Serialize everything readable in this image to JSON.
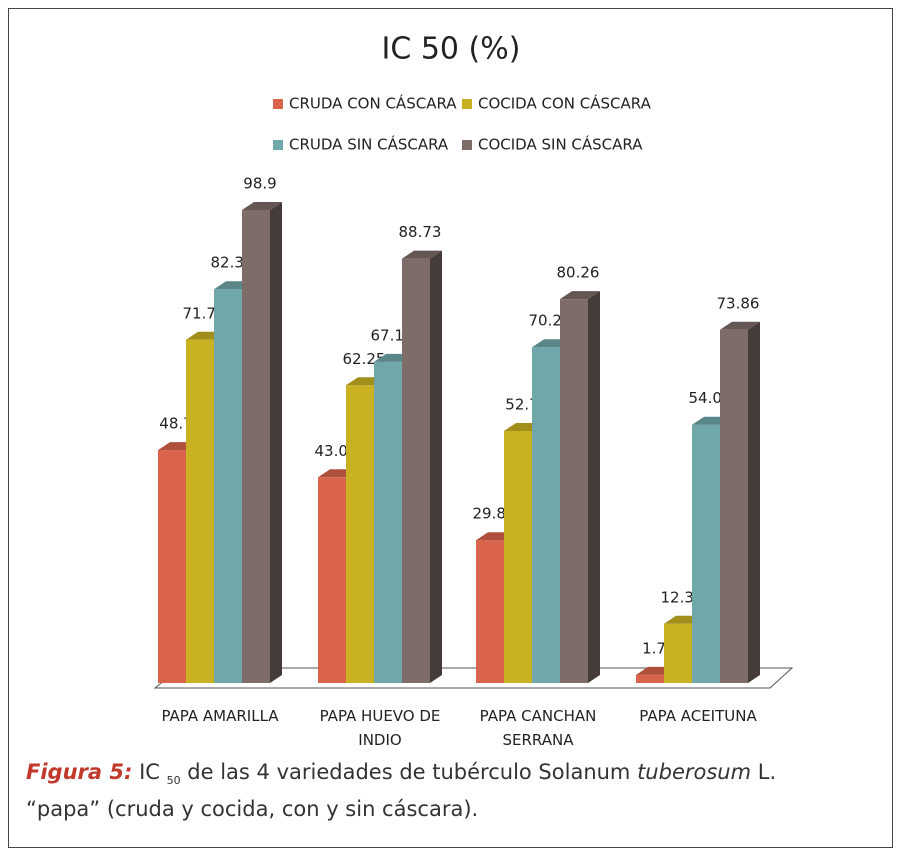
{
  "chart_data": {
    "type": "bar3d",
    "title": "IC 50 (%)",
    "categories": [
      "PAPA AMARILLA",
      "PAPA HUEVO DE INDIO",
      "PAPA CANCHAN SERRANA",
      "PAPA ACEITUNA"
    ],
    "series": [
      {
        "name": "CRUDA CON CÁSCARA",
        "color": "#d9644b",
        "values": [
          48.7,
          43.01,
          29.86,
          1.7
        ]
      },
      {
        "name": "COCIDA CON CÁSCARA",
        "color": "#c9b122",
        "values": [
          71.77,
          62.25,
          52.7,
          12.38
        ]
      },
      {
        "name": "CRUDA SIN CÁSCARA",
        "color": "#70a7aa",
        "values": [
          82.34,
          67.14,
          70.21,
          54.01
        ]
      },
      {
        "name": "COCIDA SIN CÁSCARA",
        "color": "#7d6c68",
        "values": [
          98.9,
          88.73,
          80.26,
          73.86
        ]
      }
    ]
  },
  "caption": {
    "label": "Figura 5:",
    "text1": "IC",
    "sub": "50",
    "text2": "de las 4 variedades de tubérculo Solanum",
    "italic": "tuberosum",
    "text3": "L.",
    "text4": "“papa” (cruda y cocida, con y sin cáscara)."
  }
}
